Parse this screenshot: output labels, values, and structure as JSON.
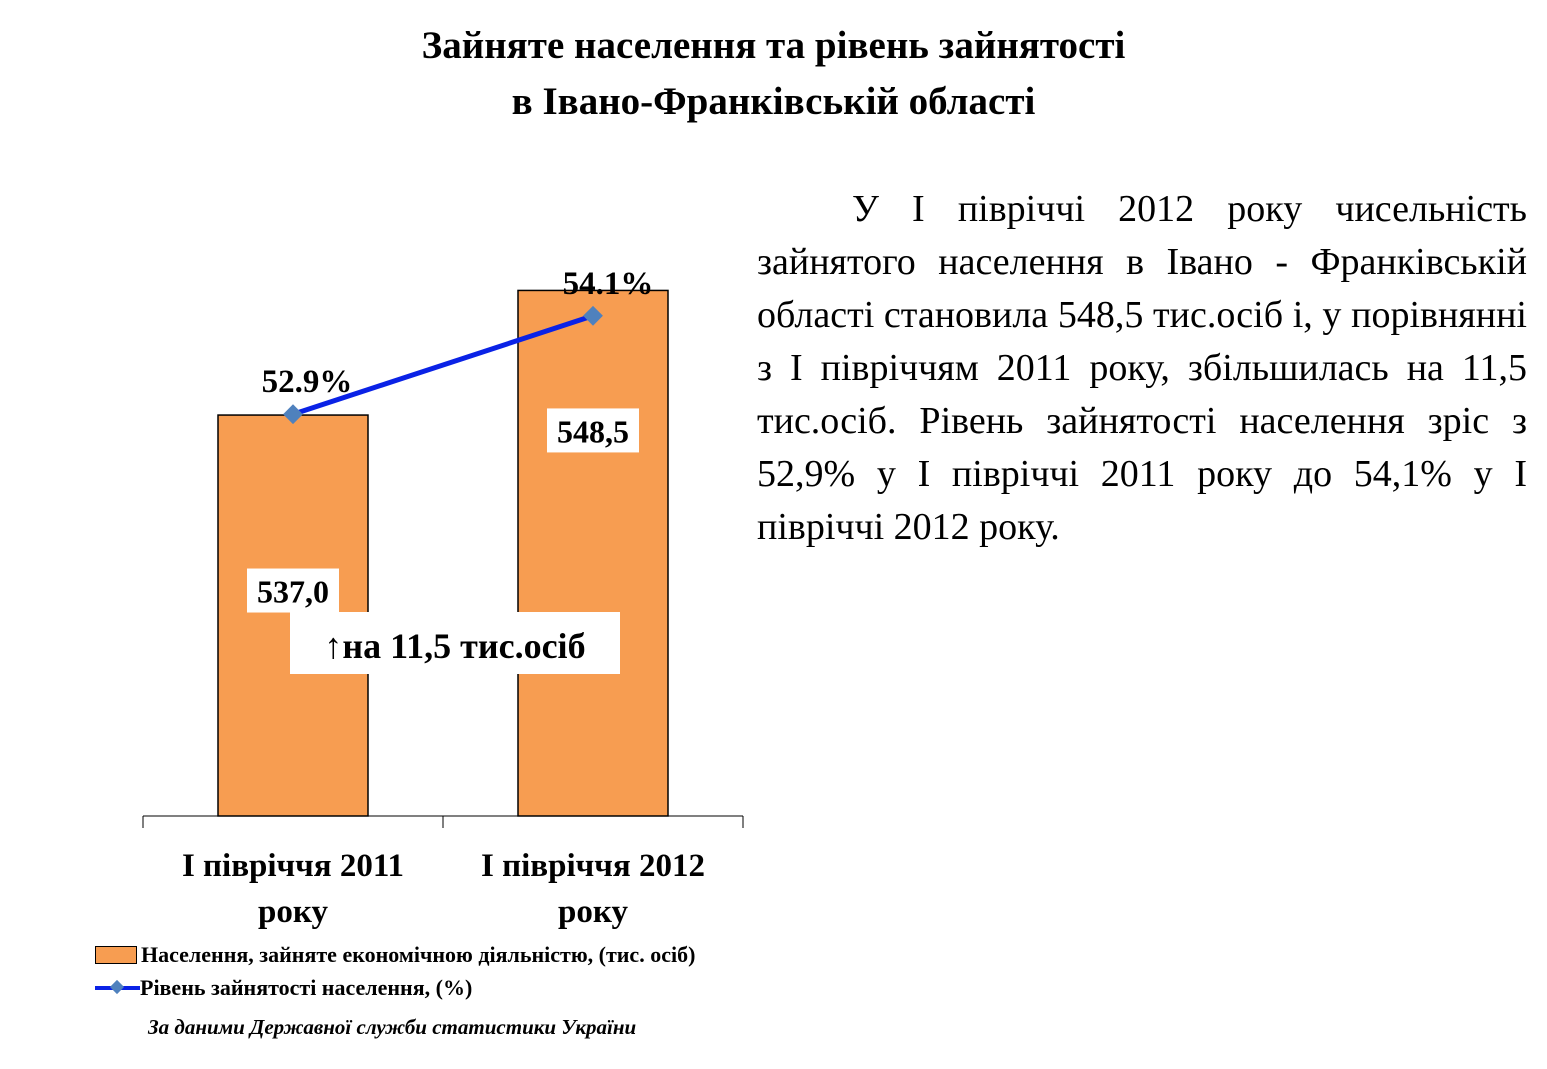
{
  "title": {
    "line1": "Зайняте населення та рівень зайнятості",
    "line2": "в Івано-Франківській області"
  },
  "chart_data": {
    "type": "bar",
    "categories": [
      "І півріччя 2011 року",
      "І півріччя 2012 року"
    ],
    "category_lines": [
      [
        "І півріччя 2011",
        "року"
      ],
      [
        "І півріччя 2012",
        "року"
      ]
    ],
    "series": [
      {
        "name": "Населення, зайняте економічною діяльністю, (тис. осіб)",
        "kind": "bar",
        "values": [
          537.0,
          548.5
        ],
        "labels": [
          "537,0",
          "548,5"
        ],
        "color": "#f79d51"
      },
      {
        "name": "Рівень зайнятості населення, (%)",
        "kind": "line",
        "values": [
          52.9,
          54.1
        ],
        "labels": [
          "52.9%",
          "54.1%"
        ],
        "color": "#0a22e6",
        "marker_color": "#4f81bd"
      }
    ],
    "annotation": "↑на 11,5 тис.осіб",
    "bar_ylim": [
      500,
      555
    ],
    "line_ylim": [
      48,
      56
    ],
    "grid": false,
    "legend_position": "bottom"
  },
  "text": {
    "paragraph": "У І півріччі 2012 року чисельність зайнятого населення в Івано - Франківській області становила 548,5 тис.осіб і, у порівнянні з І півріччям 2011 року, збільшилась на 11,5 тис.осіб. Рівень зайнятості населення зріс з 52,9% у І півріччі 2011 року до 54,1% у І півріччі 2012 року."
  },
  "source": "За даними Державної служби статистики України"
}
